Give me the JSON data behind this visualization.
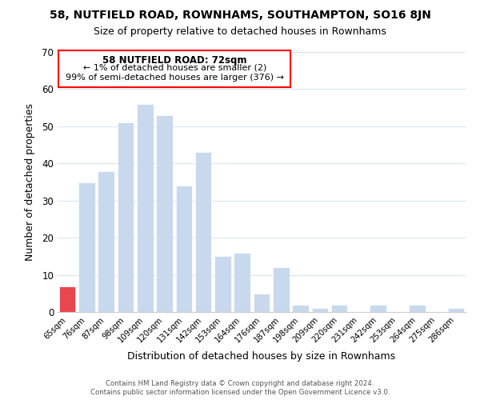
{
  "title": "58, NUTFIELD ROAD, ROWNHAMS, SOUTHAMPTON, SO16 8JN",
  "subtitle": "Size of property relative to detached houses in Rownhams",
  "xlabel": "Distribution of detached houses by size in Rownhams",
  "ylabel": "Number of detached properties",
  "bar_labels": [
    "65sqm",
    "76sqm",
    "87sqm",
    "98sqm",
    "109sqm",
    "120sqm",
    "131sqm",
    "142sqm",
    "153sqm",
    "164sqm",
    "176sqm",
    "187sqm",
    "198sqm",
    "209sqm",
    "220sqm",
    "231sqm",
    "242sqm",
    "253sqm",
    "264sqm",
    "275sqm",
    "286sqm"
  ],
  "bar_values": [
    7,
    35,
    38,
    51,
    56,
    53,
    34,
    43,
    15,
    16,
    5,
    12,
    2,
    1,
    2,
    0,
    2,
    0,
    2,
    0,
    1
  ],
  "bar_color": "#C8D9ED",
  "highlight_bar_color": "#E8474C",
  "highlight_index": 0,
  "ylim": [
    0,
    70
  ],
  "yticks": [
    0,
    10,
    20,
    30,
    40,
    50,
    60,
    70
  ],
  "annotation_title": "58 NUTFIELD ROAD: 72sqm",
  "annotation_line1": "← 1% of detached houses are smaller (2)",
  "annotation_line2": "99% of semi-detached houses are larger (376) →",
  "footer_line1": "Contains HM Land Registry data © Crown copyright and database right 2024.",
  "footer_line2": "Contains public sector information licensed under the Open Government Licence v3.0.",
  "bg_color": "#FFFFFF",
  "grid_color": "#D8E4F0",
  "bar_edge_color": "#FFFFFF"
}
